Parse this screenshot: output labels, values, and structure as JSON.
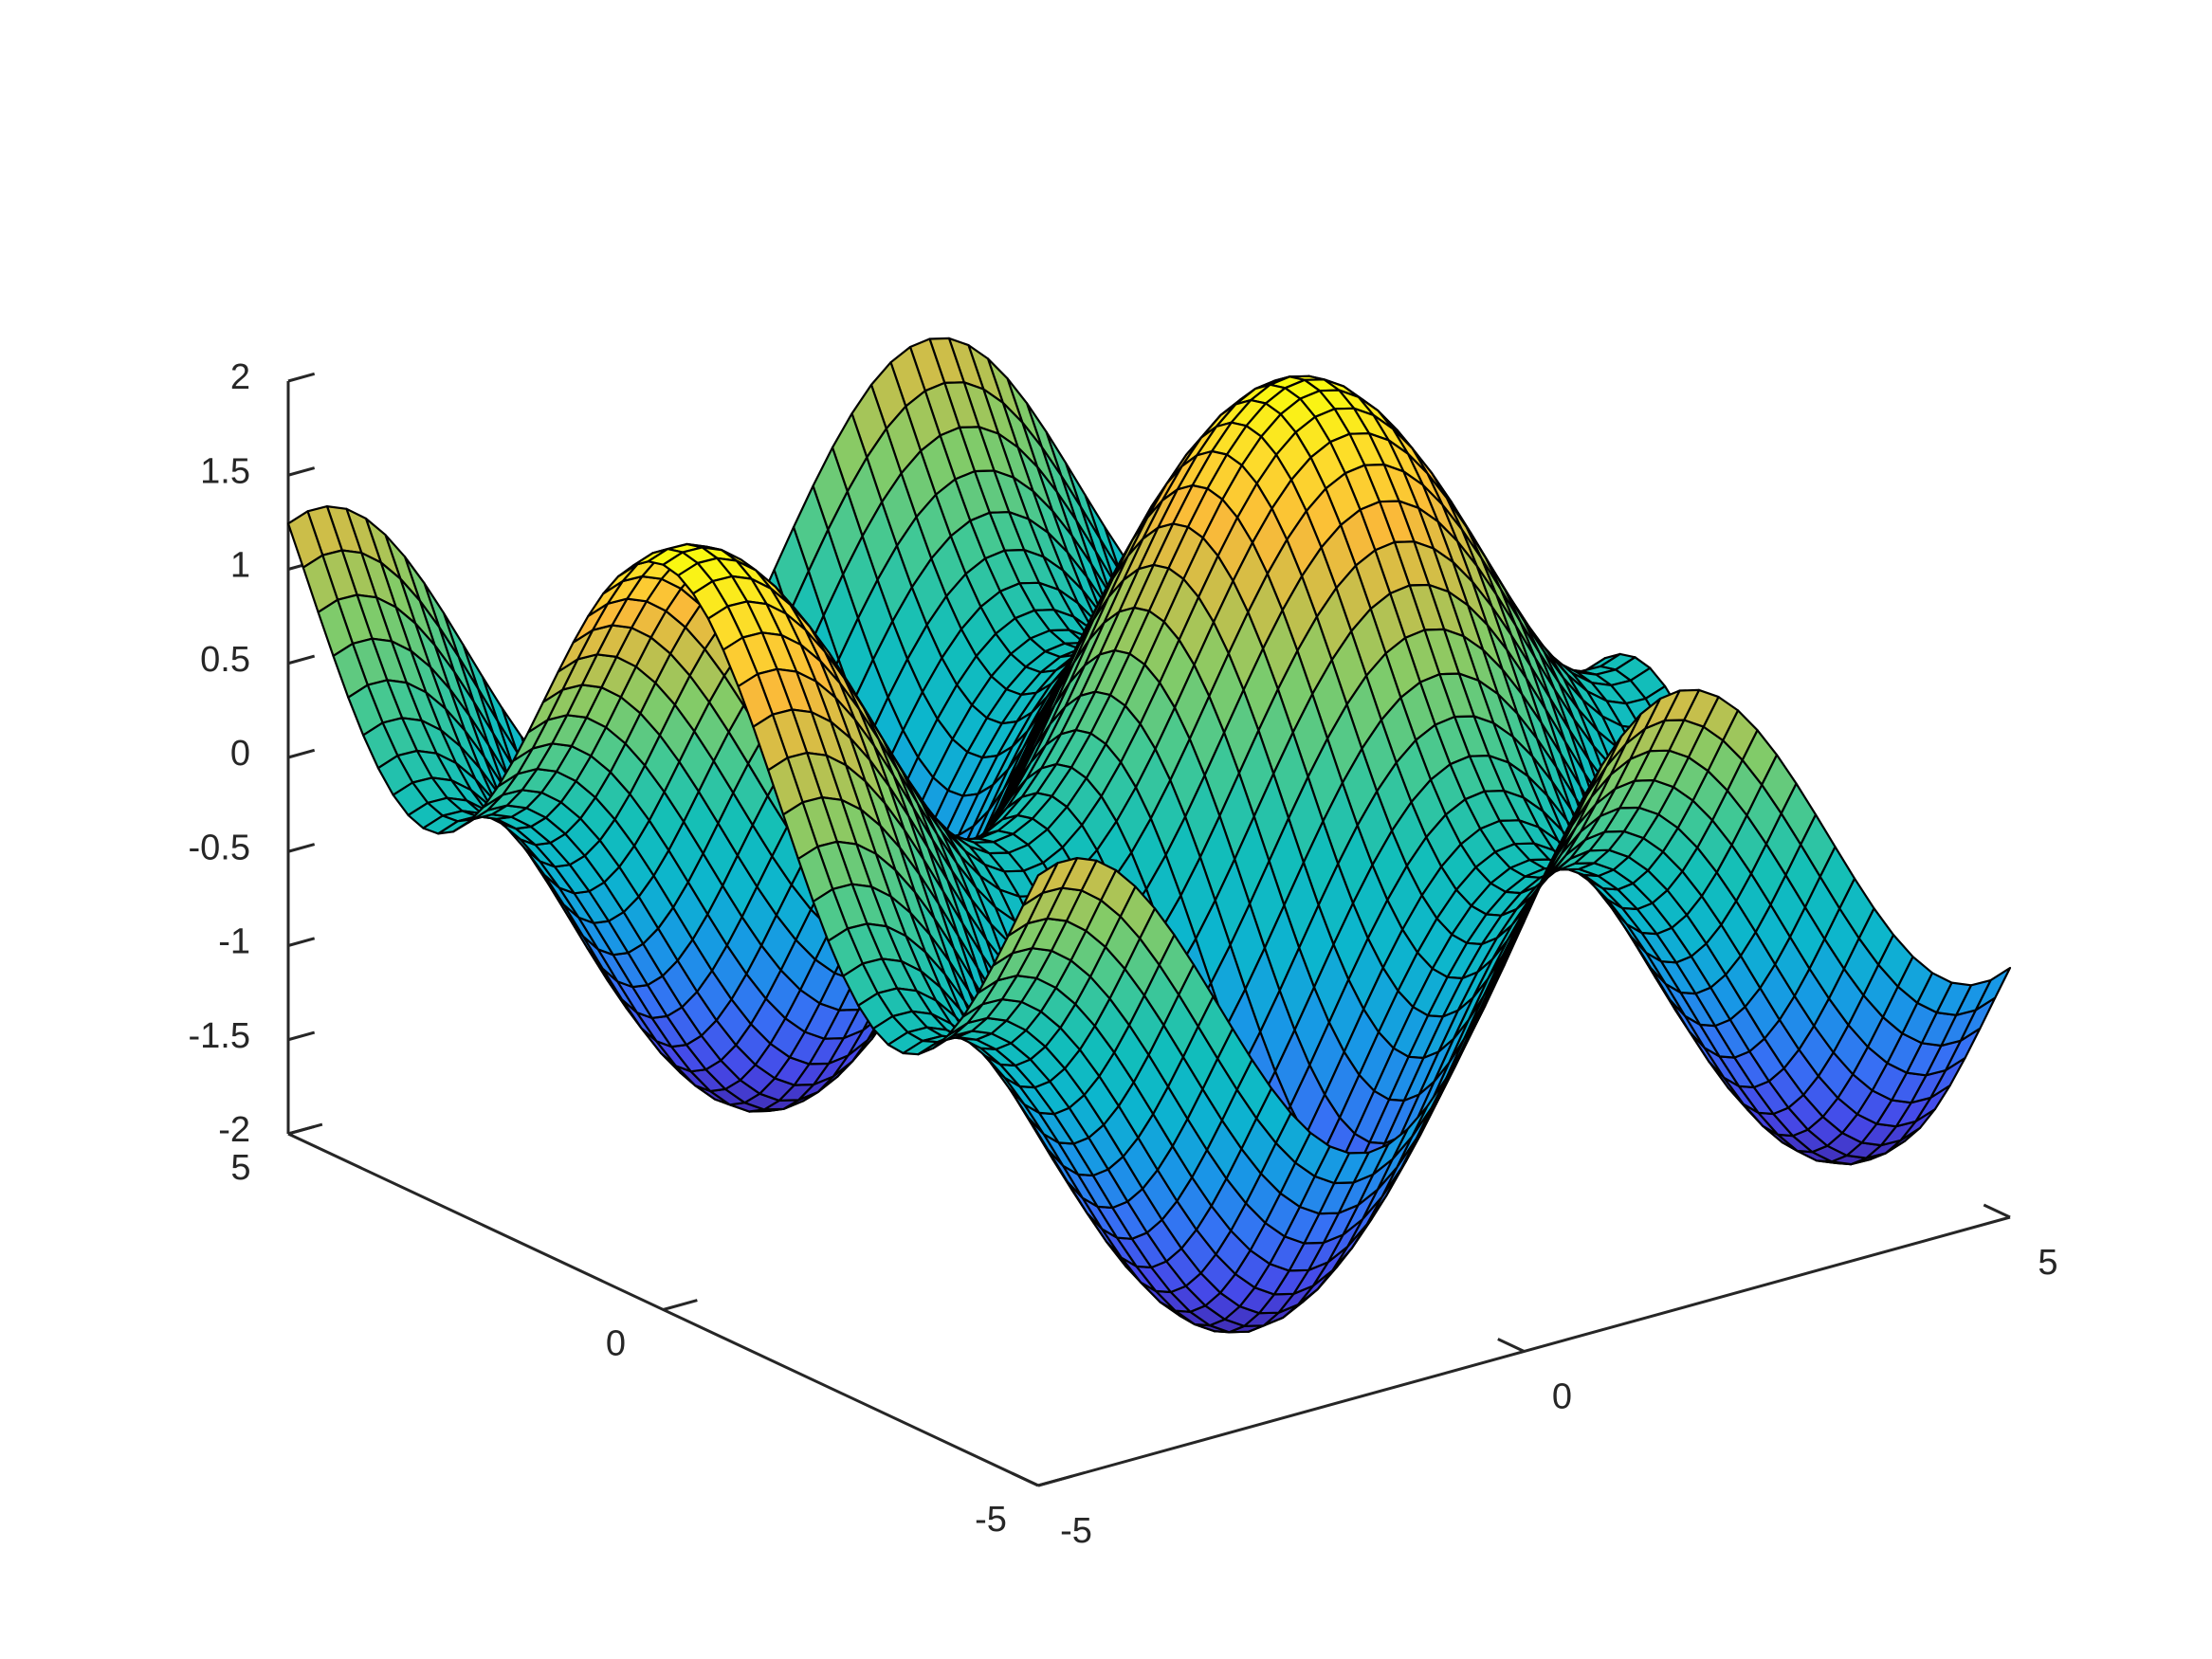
{
  "chart_data": {
    "type": "surface",
    "title": "",
    "xlabel": "",
    "ylabel": "",
    "zlabel": "",
    "function": "z = sin(x) + cos(y)",
    "x_range": [
      -5,
      5
    ],
    "y_range": [
      -5,
      5
    ],
    "grid_size": 51,
    "colormap": "parula",
    "xlim": [
      -5,
      5
    ],
    "ylim": [
      -5,
      5
    ],
    "zlim": [
      -2,
      2
    ],
    "x_ticks": [
      "-5",
      "0",
      "5"
    ],
    "y_ticks": [
      "-5",
      "0",
      "5"
    ],
    "z_ticks": [
      "-2",
      "-1.5",
      "-1",
      "-0.5",
      "0",
      "0.5",
      "1",
      "1.5",
      "2"
    ],
    "grid": false,
    "legend": "none",
    "edge_color": "#000000",
    "axis_color": "#262626"
  }
}
